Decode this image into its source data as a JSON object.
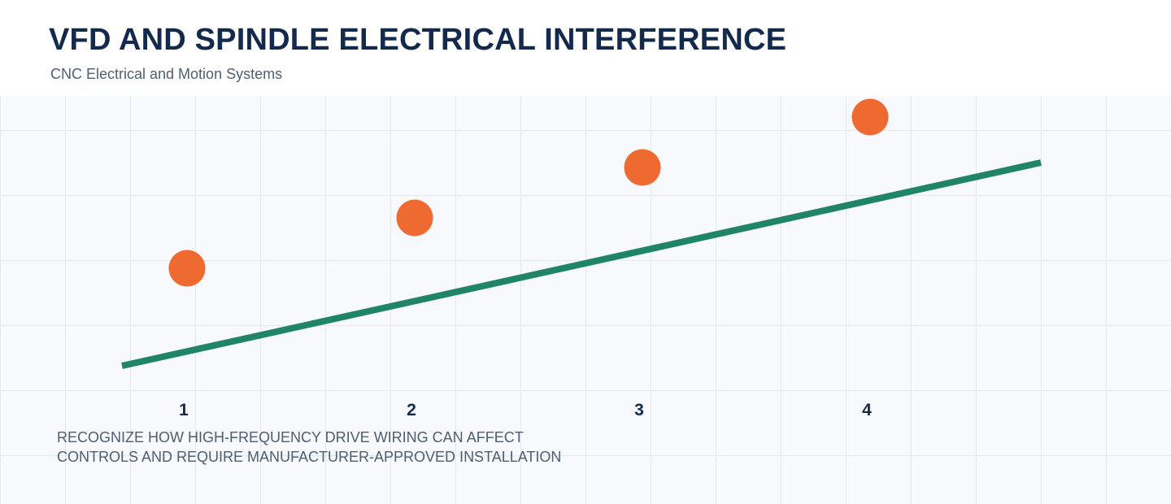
{
  "header": {
    "title": "VFD AND SPINDLE ELECTRICAL INTERFERENCE",
    "subtitle": "CNC Electrical and Motion Systems"
  },
  "diagram": {
    "steps": [
      "1",
      "2",
      "3",
      "4"
    ],
    "caption_lines": [
      "RECOGNIZE HOW HIGH-FREQUENCY DRIVE WIRING CAN AFFECT",
      "CONTROLS AND REQUIRE MANUFACTURER-APPROVED INSTALLATION"
    ]
  },
  "colors": {
    "title": "#142a4d",
    "subtitle": "#4d5d74",
    "accent_line": "#1f8468",
    "marker": "#ee6a31",
    "step_number": "#142a4d",
    "caption": "#4d5d74",
    "grid_background": "#f7f9fc",
    "grid_line": "#e3e7ee"
  }
}
